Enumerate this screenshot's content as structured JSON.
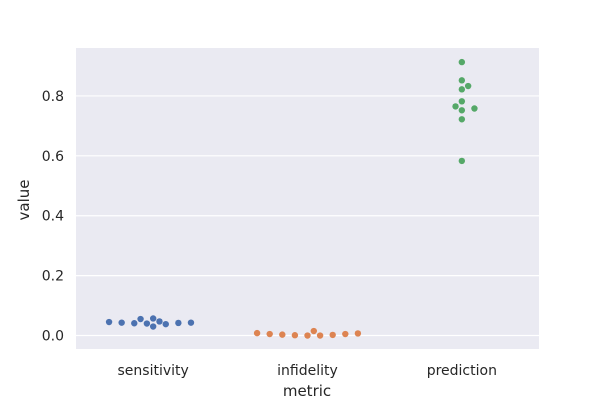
{
  "chart_data": {
    "type": "scatter",
    "style": "swarm",
    "xlabel": "metric",
    "ylabel": "value",
    "categories": [
      "sensitivity",
      "infidelity",
      "prediction"
    ],
    "ylim": [
      -0.045,
      0.96
    ],
    "yticks": [
      0.0,
      0.2,
      0.4,
      0.6,
      0.8
    ],
    "ytick_labels": [
      "0.0",
      "0.2",
      "0.4",
      "0.6",
      "0.8"
    ],
    "grid": true,
    "legend": "none",
    "colors": {
      "background": "#eaeaf2",
      "grid": "#ffffff",
      "sensitivity": "#4c72b0",
      "infidelity": "#dd8452",
      "prediction": "#55a868"
    },
    "points": [
      {
        "category": "sensitivity",
        "values": [
          0.057,
          0.047,
          0.043,
          0.04,
          0.038,
          0.03,
          0.055,
          0.042,
          0.041,
          0.043,
          0.045
        ]
      },
      {
        "category": "infidelity",
        "values": [
          0.008,
          0.005,
          0.002,
          0.0,
          0.0,
          0.001,
          0.003,
          0.005,
          0.007,
          0.015
        ]
      },
      {
        "category": "prediction",
        "values": [
          0.913,
          0.852,
          0.833,
          0.822,
          0.782,
          0.758,
          0.752,
          0.765,
          0.722,
          0.583
        ]
      }
    ]
  }
}
